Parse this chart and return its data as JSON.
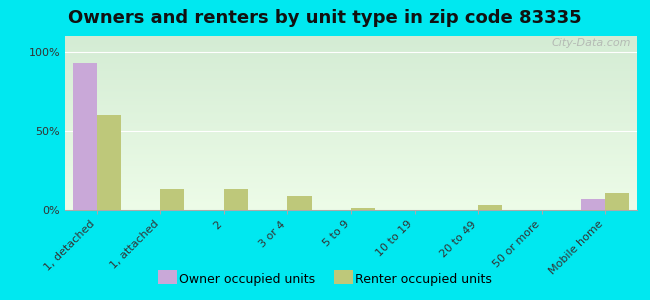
{
  "title": "Owners and renters by unit type in zip code 83335",
  "categories": [
    "1, detached",
    "1, attached",
    "2",
    "3 or 4",
    "5 to 9",
    "10 to 19",
    "20 to 49",
    "50 or more",
    "Mobile home"
  ],
  "owner_values": [
    93,
    0,
    0,
    0,
    0,
    0,
    0,
    0,
    7
  ],
  "renter_values": [
    60,
    13,
    13,
    9,
    1,
    0,
    3,
    0,
    11
  ],
  "owner_color": "#c9a8d8",
  "renter_color": "#bec87a",
  "outer_bg": "#00e8f0",
  "plot_bg_bottom": "#edfce8",
  "plot_bg_top": "#d4ecd4",
  "yticks": [
    0,
    50,
    100
  ],
  "ytick_labels": [
    "0%",
    "50%",
    "100%"
  ],
  "ylim": [
    0,
    110
  ],
  "bar_width": 0.38,
  "legend_owner": "Owner occupied units",
  "legend_renter": "Renter occupied units",
  "watermark": "City-Data.com",
  "title_fontsize": 13,
  "tick_fontsize": 8,
  "legend_fontsize": 9
}
